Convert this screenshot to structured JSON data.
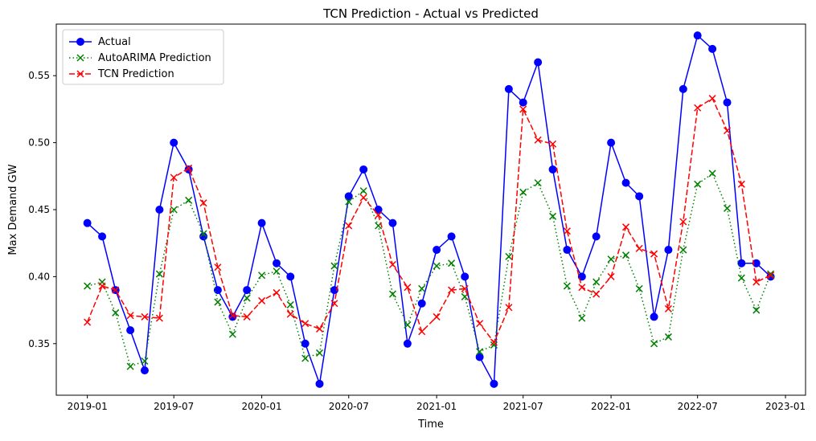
{
  "chart_data": {
    "type": "line",
    "title": "TCN Prediction - Actual vs Predicted",
    "xlabel": "Time",
    "ylabel": "Max Demand GW",
    "x_ticks": [
      {
        "label": "2019-01",
        "date": "2019-01-01"
      },
      {
        "label": "2019-07",
        "date": "2019-07-01"
      },
      {
        "label": "2020-01",
        "date": "2020-01-01"
      },
      {
        "label": "2020-07",
        "date": "2020-07-01"
      },
      {
        "label": "2021-01",
        "date": "2021-01-01"
      },
      {
        "label": "2021-07",
        "date": "2021-07-01"
      },
      {
        "label": "2022-01",
        "date": "2022-01-01"
      },
      {
        "label": "2022-07",
        "date": "2022-07-01"
      },
      {
        "label": "2023-01",
        "date": "2023-01-01"
      }
    ],
    "y_ticks": [
      "0.35",
      "0.40",
      "0.45",
      "0.50",
      "0.55"
    ],
    "xlim": [
      "2018-10-28",
      "2023-02-12"
    ],
    "ylim": [
      0.3115,
      0.5885
    ],
    "grid": false,
    "legend_position": "top-left",
    "x": [
      "2019-01",
      "2019-02",
      "2019-03",
      "2019-04",
      "2019-05",
      "2019-06",
      "2019-07",
      "2019-08",
      "2019-09",
      "2019-10",
      "2019-11",
      "2019-12",
      "2020-01",
      "2020-02",
      "2020-03",
      "2020-04",
      "2020-05",
      "2020-06",
      "2020-07",
      "2020-08",
      "2020-09",
      "2020-10",
      "2020-11",
      "2020-12",
      "2021-01",
      "2021-02",
      "2021-03",
      "2021-04",
      "2021-05",
      "2021-06",
      "2021-07",
      "2021-08",
      "2021-09",
      "2021-10",
      "2021-11",
      "2021-12",
      "2022-01",
      "2022-02",
      "2022-03",
      "2022-04",
      "2022-05",
      "2022-06",
      "2022-07",
      "2022-08",
      "2022-09",
      "2022-10",
      "2022-11",
      "2022-12"
    ],
    "series": [
      {
        "name": "Actual",
        "color": "#0000ff",
        "line_style": "solid",
        "marker": "circle",
        "values": [
          0.44,
          0.43,
          0.39,
          0.36,
          0.33,
          0.45,
          0.5,
          0.48,
          0.43,
          0.39,
          0.37,
          0.39,
          0.44,
          0.41,
          0.4,
          0.35,
          0.32,
          0.39,
          0.46,
          0.48,
          0.45,
          0.44,
          0.35,
          0.38,
          0.42,
          0.43,
          0.4,
          0.34,
          0.32,
          0.54,
          0.53,
          0.56,
          0.48,
          0.42,
          0.4,
          0.43,
          0.5,
          0.47,
          0.46,
          0.37,
          0.42,
          0.54,
          0.58,
          0.57,
          0.53,
          0.41,
          0.41,
          0.4
        ]
      },
      {
        "name": "AutoARIMA Prediction",
        "color": "#008000",
        "line_style": "dotted",
        "marker": "x",
        "values": [
          0.393,
          0.396,
          0.373,
          0.333,
          0.337,
          0.402,
          0.45,
          0.457,
          0.432,
          0.381,
          0.357,
          0.384,
          0.401,
          0.404,
          0.379,
          0.339,
          0.343,
          0.408,
          0.456,
          0.464,
          0.438,
          0.387,
          0.364,
          0.391,
          0.408,
          0.41,
          0.385,
          0.344,
          0.349,
          0.415,
          0.463,
          0.47,
          0.445,
          0.393,
          0.369,
          0.396,
          0.413,
          0.416,
          0.391,
          0.35,
          0.355,
          0.42,
          0.469,
          0.477,
          0.451,
          0.399,
          0.375,
          0.402
        ]
      },
      {
        "name": "TCN Prediction",
        "color": "#ff0000",
        "line_style": "dashed",
        "marker": "x",
        "values": [
          0.366,
          0.393,
          0.39,
          0.371,
          0.37,
          0.369,
          0.474,
          0.481,
          0.455,
          0.407,
          0.371,
          0.37,
          0.382,
          0.388,
          0.372,
          0.365,
          0.361,
          0.38,
          0.438,
          0.459,
          0.446,
          0.409,
          0.392,
          0.359,
          0.37,
          0.39,
          0.391,
          0.365,
          0.351,
          0.377,
          0.525,
          0.502,
          0.499,
          0.434,
          0.392,
          0.387,
          0.4,
          0.437,
          0.421,
          0.417,
          0.376,
          0.441,
          0.526,
          0.533,
          0.509,
          0.469,
          0.396,
          0.401
        ]
      }
    ]
  }
}
